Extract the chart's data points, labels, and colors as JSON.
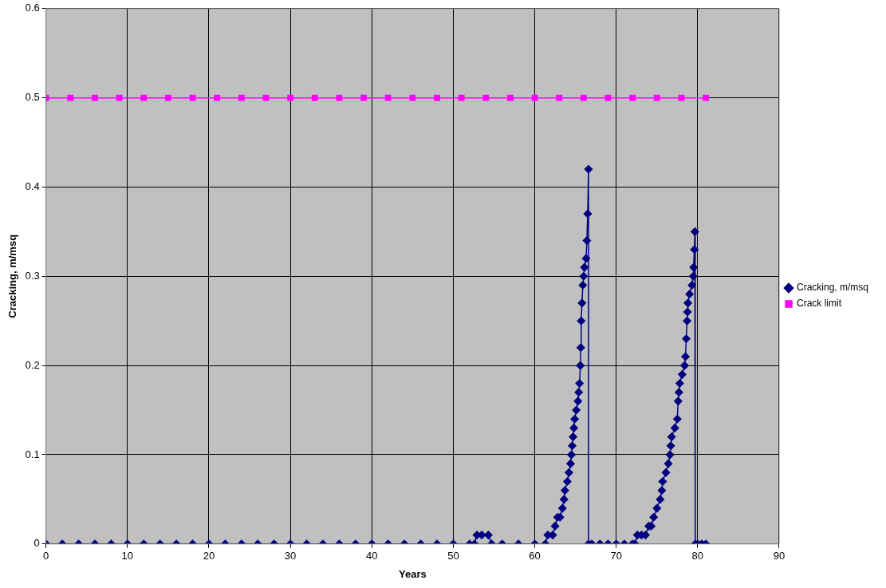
{
  "chart_data": {
    "type": "line",
    "xlabel": "Years",
    "ylabel": "Cracking, m/msq",
    "xlim": [
      0,
      90
    ],
    "xticks": [
      0,
      10,
      20,
      30,
      40,
      50,
      60,
      70,
      80,
      90
    ],
    "ylim": [
      0,
      0.6
    ],
    "yticks": [
      0,
      0.1,
      0.2,
      0.3,
      0.4,
      0.5,
      0.6
    ],
    "grid": true,
    "legend": "right",
    "series": [
      {
        "name": "Cracking, m/msq",
        "color": "#000080",
        "marker": "diamond",
        "x": [
          0,
          2,
          4,
          6,
          8,
          10,
          12,
          14,
          16,
          18,
          20,
          22,
          24,
          26,
          28,
          30,
          32,
          34,
          36,
          38,
          40,
          42,
          44,
          46,
          48,
          50,
          52,
          52.6,
          52.9,
          53.5,
          54.3,
          54.7,
          56,
          58,
          60,
          61.3,
          61.6,
          62.2,
          62.5,
          62.8,
          63.1,
          63.4,
          63.6,
          63.7,
          64.0,
          64.2,
          64.4,
          64.5,
          64.6,
          64.7,
          64.8,
          64.9,
          65.1,
          65.3,
          65.4,
          65.5,
          65.6,
          65.65,
          65.7,
          65.8,
          65.9,
          66.0,
          66.1,
          66.3,
          66.4,
          66.5,
          66.6,
          66.6,
          67,
          68,
          69,
          70,
          71,
          72,
          72.3,
          72.6,
          73.1,
          73.6,
          74.0,
          74.3,
          74.6,
          75.0,
          75.4,
          75.6,
          75.7,
          76.1,
          76.4,
          76.6,
          76.7,
          76.8,
          77.2,
          77.5,
          77.6,
          77.7,
          77.8,
          78.1,
          78.4,
          78.5,
          78.6,
          78.7,
          78.75,
          78.8,
          79.0,
          79.3,
          79.45,
          79.5,
          79.6,
          79.66,
          79.7,
          80,
          80.5,
          81
        ],
        "values": [
          0,
          0,
          0,
          0,
          0,
          0,
          0,
          0,
          0,
          0,
          0,
          0,
          0,
          0,
          0,
          0,
          0,
          0,
          0,
          0,
          0,
          0,
          0,
          0,
          0,
          0,
          0,
          0,
          0.01,
          0.01,
          0.01,
          0,
          0,
          0,
          0,
          0,
          0.01,
          0.01,
          0.02,
          0.03,
          0.03,
          0.04,
          0.05,
          0.06,
          0.07,
          0.08,
          0.09,
          0.1,
          0.11,
          0.12,
          0.13,
          0.14,
          0.15,
          0.16,
          0.17,
          0.18,
          0.2,
          0.22,
          0.25,
          0.27,
          0.29,
          0.3,
          0.31,
          0.32,
          0.34,
          0.37,
          0.42,
          0,
          0,
          0,
          0,
          0,
          0,
          0,
          0,
          0.01,
          0.01,
          0.01,
          0.02,
          0.02,
          0.03,
          0.04,
          0.05,
          0.06,
          0.07,
          0.08,
          0.09,
          0.1,
          0.11,
          0.12,
          0.13,
          0.14,
          0.16,
          0.17,
          0.18,
          0.19,
          0.2,
          0.21,
          0.23,
          0.25,
          0.26,
          0.27,
          0.28,
          0.29,
          0.3,
          0.31,
          0.33,
          0.35,
          0,
          0,
          0,
          0
        ]
      },
      {
        "name": "Crack limit",
        "color": "#ff00ff",
        "marker": "square",
        "x": [
          0,
          3,
          6,
          9,
          12,
          15,
          18,
          21,
          24,
          27,
          30,
          33,
          36,
          39,
          42,
          45,
          48,
          51,
          54,
          57,
          60,
          63,
          66,
          69,
          72,
          75,
          78,
          81
        ],
        "values": [
          0.5,
          0.5,
          0.5,
          0.5,
          0.5,
          0.5,
          0.5,
          0.5,
          0.5,
          0.5,
          0.5,
          0.5,
          0.5,
          0.5,
          0.5,
          0.5,
          0.5,
          0.5,
          0.5,
          0.5,
          0.5,
          0.5,
          0.5,
          0.5,
          0.5,
          0.5,
          0.5,
          0.5
        ]
      }
    ]
  }
}
